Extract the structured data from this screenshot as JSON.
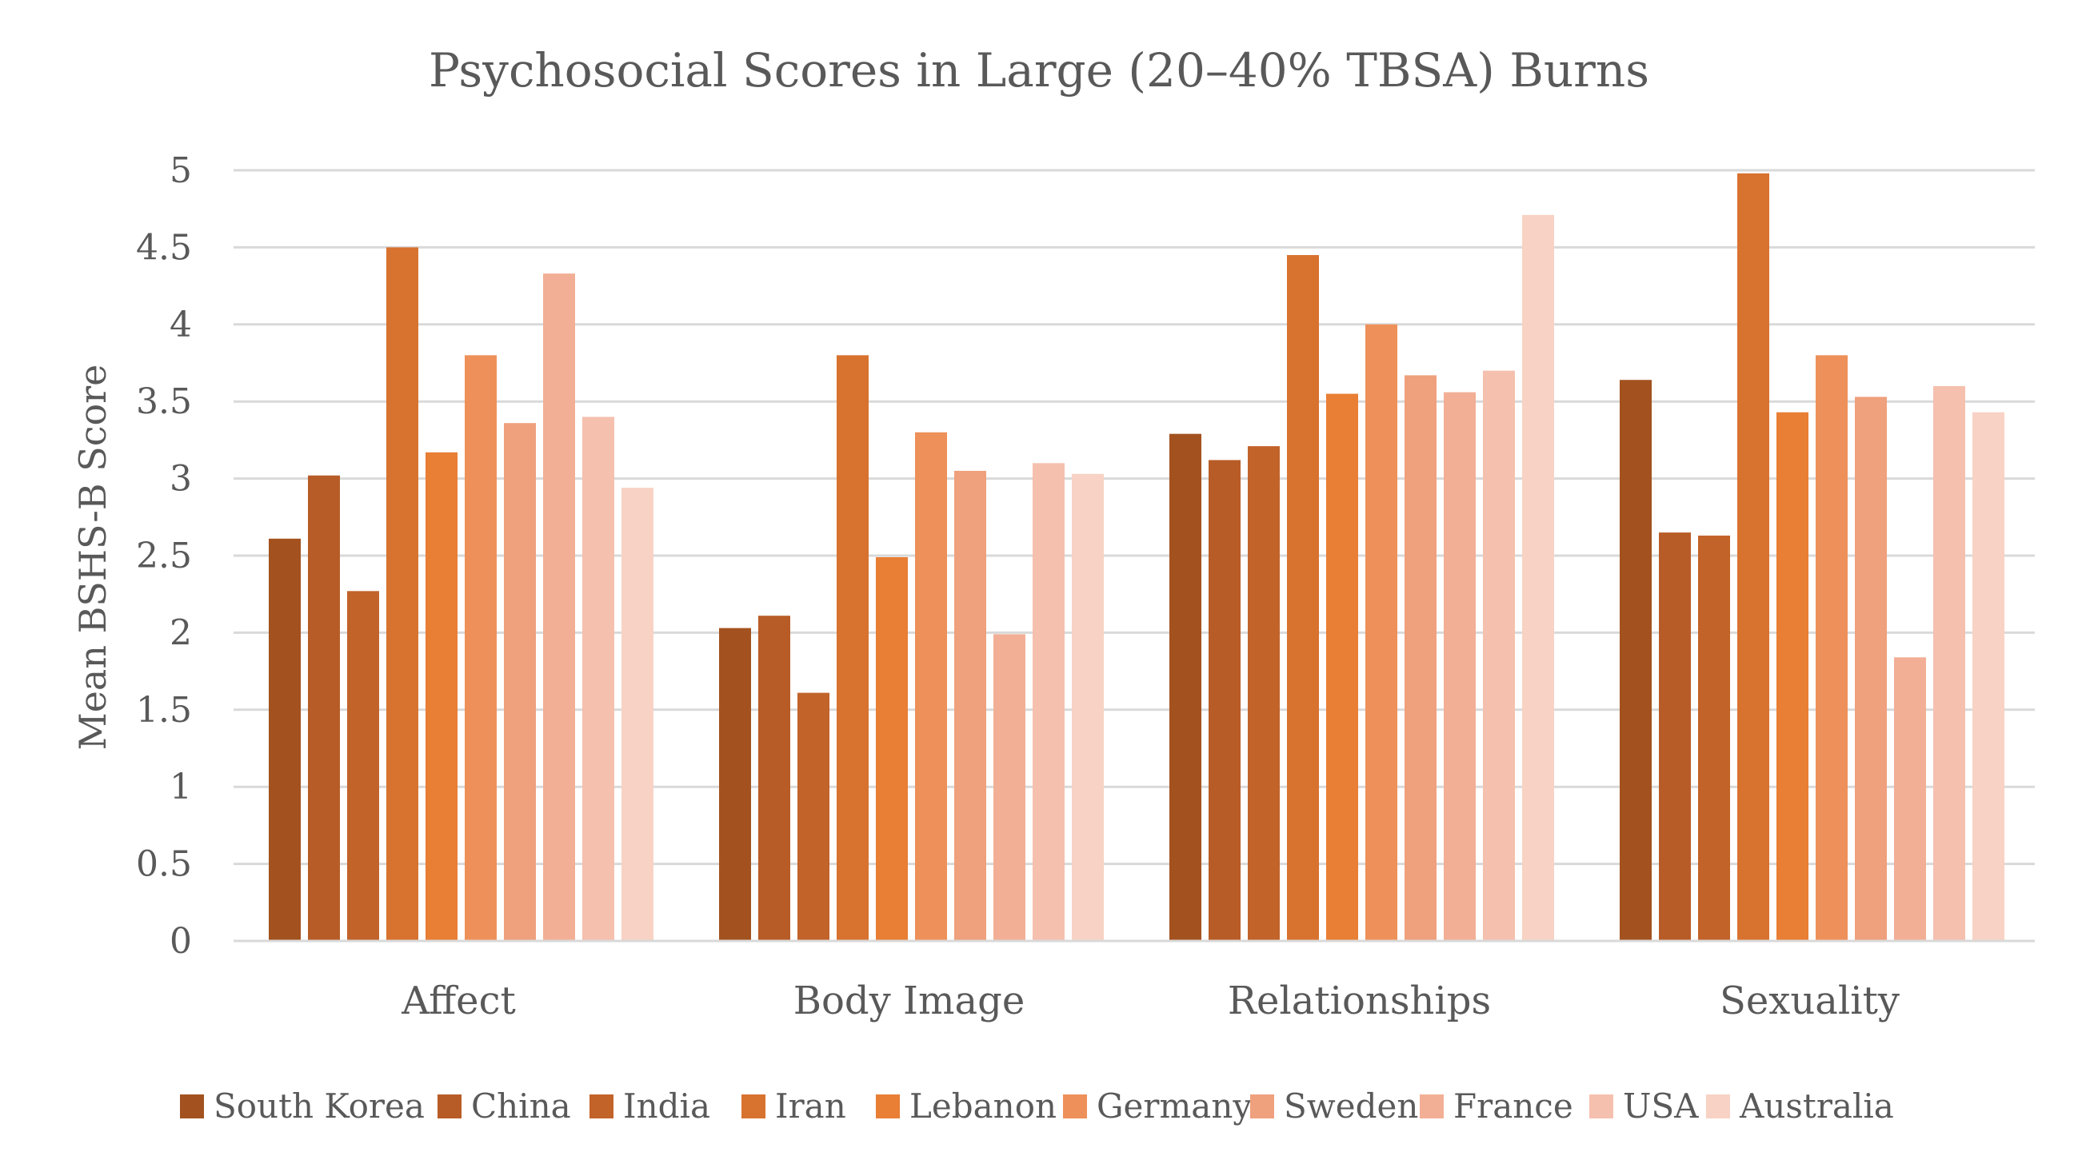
{
  "chart_data": {
    "type": "bar",
    "title": "Psychosocial Scores in Large (20–40% TBSA) Burns",
    "xlabel": "",
    "ylabel": "Mean BSHS-B Score",
    "ylim": [
      0,
      5
    ],
    "ytick_step": 0.5,
    "grid": true,
    "legend_position": "bottom",
    "categories": [
      "Affect",
      "Body Image",
      "Relationships",
      "Sexuality"
    ],
    "series": [
      {
        "name": "South Korea",
        "color": "#A3521F",
        "values": [
          2.61,
          2.03,
          3.29,
          3.64
        ]
      },
      {
        "name": "China",
        "color": "#B85C27",
        "values": [
          3.02,
          2.11,
          3.12,
          2.65
        ]
      },
      {
        "name": "India",
        "color": "#C2632A",
        "values": [
          2.27,
          1.61,
          3.21,
          2.63
        ]
      },
      {
        "name": "Iran",
        "color": "#D8722F",
        "values": [
          4.5,
          3.8,
          4.45,
          4.98
        ]
      },
      {
        "name": "Lebanon",
        "color": "#E97E35",
        "values": [
          3.17,
          2.49,
          3.55,
          3.43
        ]
      },
      {
        "name": "Germany",
        "color": "#EE9059",
        "values": [
          3.8,
          3.3,
          4.0,
          3.8
        ]
      },
      {
        "name": "Sweden",
        "color": "#EFA07D",
        "values": [
          3.36,
          3.05,
          3.67,
          3.53
        ]
      },
      {
        "name": "France",
        "color": "#F2AF95",
        "values": [
          4.33,
          1.99,
          3.56,
          1.84
        ]
      },
      {
        "name": "USA",
        "color": "#F5C0AE",
        "values": [
          3.4,
          3.1,
          3.7,
          3.6
        ]
      },
      {
        "name": "Australia",
        "color": "#F8D2C4",
        "values": [
          2.94,
          3.03,
          4.71,
          3.43
        ]
      }
    ]
  }
}
